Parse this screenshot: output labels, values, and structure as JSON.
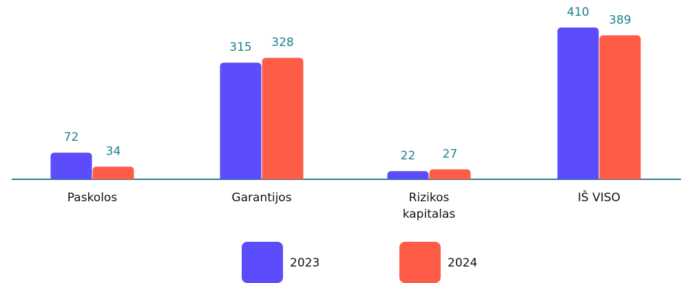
{
  "chart_data": {
    "type": "bar",
    "categories": [
      "Paskolos",
      "Garantijos",
      "Rizikos kapitalas",
      "IŠ VISO"
    ],
    "series": [
      {
        "name": "2023",
        "color": "#5b4cfc",
        "values": [
          72,
          315,
          22,
          410
        ]
      },
      {
        "name": "2024",
        "color": "#ff5c48",
        "values": [
          34,
          328,
          27,
          389
        ]
      }
    ],
    "label_color": "#1b7f8c"
  }
}
